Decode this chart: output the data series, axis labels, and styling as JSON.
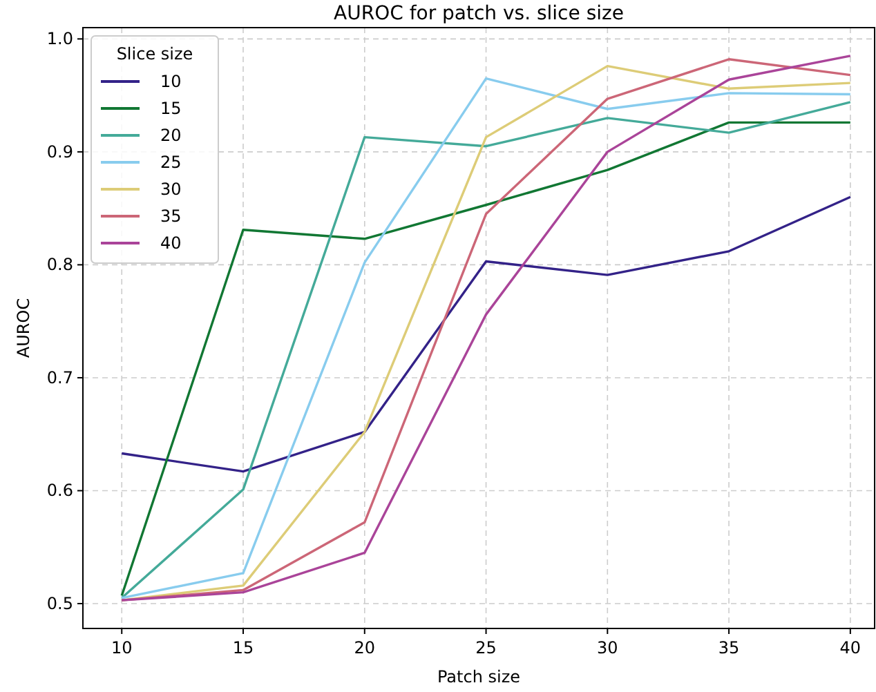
{
  "chart_data": {
    "type": "line",
    "title": "AUROC for patch vs. slice size",
    "xlabel": "Patch size",
    "ylabel": "AUROC",
    "legend_title": "Slice size",
    "legend": "top left",
    "grid": true,
    "line_style": "solid",
    "marker": "none",
    "x": [
      10,
      15,
      20,
      25,
      30,
      35,
      40
    ],
    "xlim": [
      8.4,
      41
    ],
    "xticks": [
      10,
      15,
      20,
      25,
      30,
      35,
      40
    ],
    "ylim": [
      0.478,
      1.01
    ],
    "yticks": [
      {
        "value": 0.5,
        "label": "0.5"
      },
      {
        "value": 0.6,
        "label": "0.6"
      },
      {
        "value": 0.7,
        "label": "0.7"
      },
      {
        "value": 0.8,
        "label": "0.8"
      },
      {
        "value": 0.9,
        "label": "0.9"
      },
      {
        "value": 1.0,
        "label": "1.0"
      }
    ],
    "series": [
      {
        "name": "10",
        "color": "#332288",
        "values": [
          0.633,
          0.617,
          0.652,
          0.803,
          0.791,
          0.812,
          0.86
        ]
      },
      {
        "name": "15",
        "color": "#117733",
        "values": [
          0.507,
          0.831,
          0.823,
          0.853,
          0.884,
          0.926,
          0.926
        ]
      },
      {
        "name": "20",
        "color": "#44aa99",
        "values": [
          0.505,
          0.601,
          0.913,
          0.905,
          0.93,
          0.917,
          0.944
        ]
      },
      {
        "name": "25",
        "color": "#88ccee",
        "values": [
          0.505,
          0.527,
          0.802,
          0.965,
          0.938,
          0.952,
          0.951
        ]
      },
      {
        "name": "30",
        "color": "#ddcc77",
        "values": [
          0.503,
          0.516,
          0.652,
          0.913,
          0.976,
          0.956,
          0.961
        ]
      },
      {
        "name": "35",
        "color": "#cc6677",
        "values": [
          0.503,
          0.512,
          0.572,
          0.845,
          0.947,
          0.982,
          0.968
        ]
      },
      {
        "name": "40",
        "color": "#aa4499",
        "values": [
          0.503,
          0.51,
          0.545,
          0.756,
          0.9,
          0.964,
          0.985
        ]
      }
    ]
  }
}
